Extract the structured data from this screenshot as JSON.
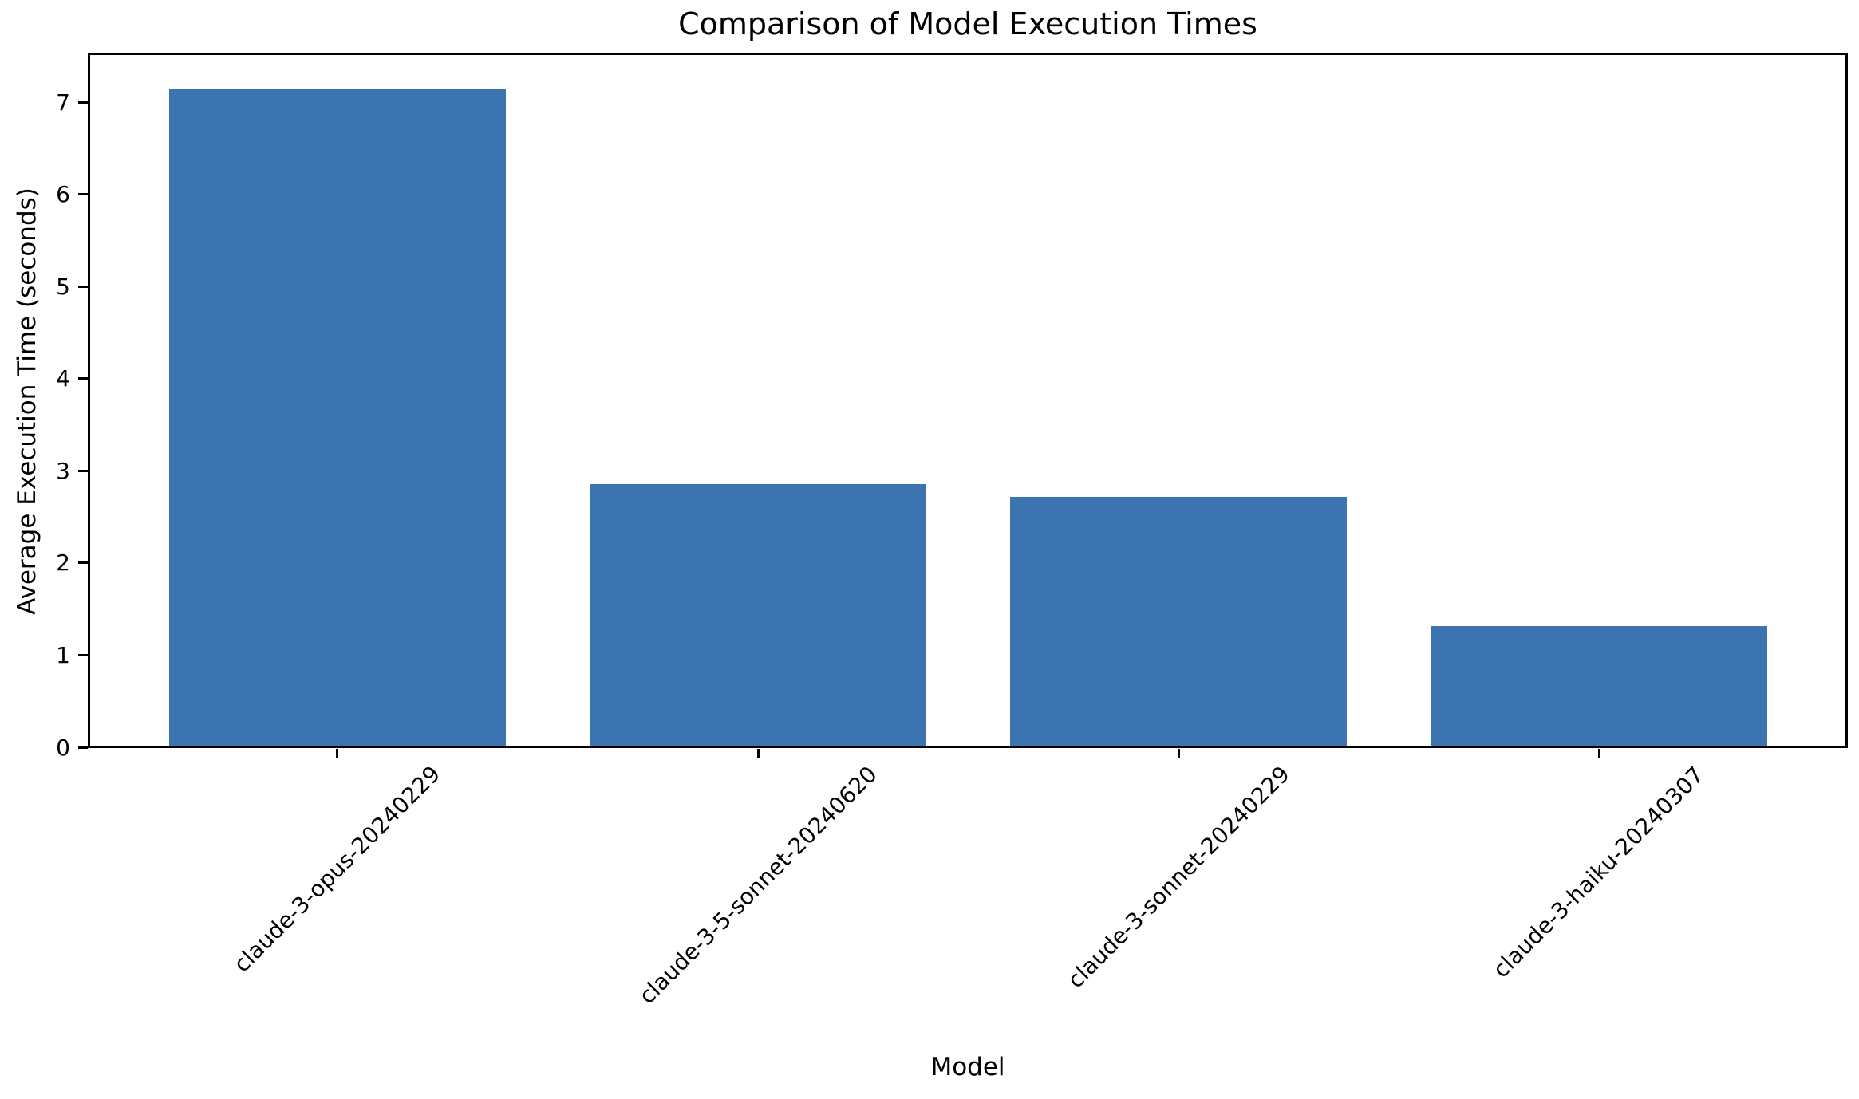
{
  "chart_data": {
    "type": "bar",
    "title": "Comparison of Model Execution Times",
    "xlabel": "Model",
    "ylabel": "Average Execution Time (seconds)",
    "categories": [
      "claude-3-opus-20240229",
      "claude-3-5-sonnet-20240620",
      "claude-3-sonnet-20240229",
      "claude-3-haiku-20240307"
    ],
    "values": [
      7.15,
      2.86,
      2.72,
      1.32
    ],
    "yticks": [
      0,
      1,
      2,
      3,
      4,
      5,
      6,
      7
    ],
    "ylim": [
      0,
      7.52
    ],
    "xlim": [
      -0.59,
      3.59
    ],
    "bar_width": 0.8,
    "bar_color": "#3B74B0",
    "axis_color": "#000000",
    "background_color": "#ffffff",
    "grid": false,
    "legend": null,
    "xtick_rotation": 45
  }
}
